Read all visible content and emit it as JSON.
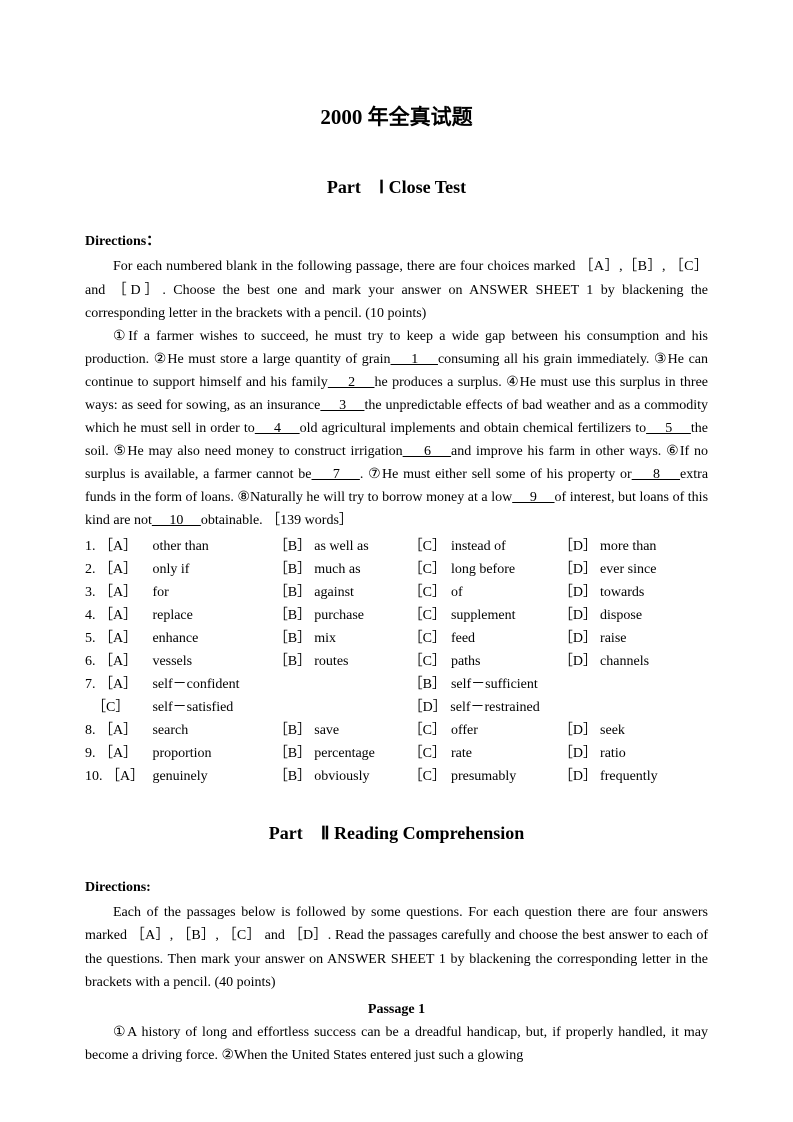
{
  "mainTitle": "2000 年全真试题",
  "part1": {
    "title": "Part　Ⅰ Close Test",
    "directionsLabel": "Directions：",
    "directionsText": "For each numbered blank in the following passage, there are four choices marked ［A］,［B］, ［C］ and ［D］. Choose the best one and mark your answer on ANSWER SHEET 1 by blackening the corresponding letter in the brackets with a pencil. (10 points)",
    "passage": {
      "s1": "①If a farmer wishes to succeed, he must try to keep a wide gap between his consumption and his production. ②He must store a large quantity of grain",
      "b1": "　 1 　",
      "s2": "consuming all his grain immediately. ③He can continue to support himself and his family",
      "b2": "　 2 　",
      "s3": "he produces a surplus. ④He must use this surplus in three ways: as seed for sowing, as an insurance",
      "b3": "　 3 　",
      "s4": "the unpredictable effects of bad weather and as a commodity which he must sell in order to",
      "b4": "　 4 　",
      "s5": "old agricultural implements and obtain chemical fertilizers to",
      "b5": "　 5 　",
      "s6": "the soil. ⑤He may also need money to construct irrigation",
      "b6": "　 6 　",
      "s7": "and improve his farm in other ways. ⑥If no surplus is available, a farmer cannot be",
      "b7": "　 7 　",
      "s8": ". ⑦He must either sell some of his property or",
      "b8": "　 8 　",
      "s9": "extra funds in the form of loans. ⑧Naturally he will try to borrow money at a low",
      "b9": "　 9 　",
      "s10": "of interest, but loans of this kind are not",
      "b10": "　 10 　",
      "s11": "obtainable. ［139 words］"
    },
    "options": [
      {
        "n": "1.",
        "a": "other than",
        "b": "as well as",
        "c": "instead of",
        "d": "more than"
      },
      {
        "n": "2.",
        "a": "only if",
        "b": "much as",
        "c": "long before",
        "d": "ever since"
      },
      {
        "n": "3.",
        "a": "for",
        "b": "against",
        "c": "of",
        "d": "towards"
      },
      {
        "n": "4.",
        "a": "replace",
        "b": "purchase",
        "c": "supplement",
        "d": "dispose"
      },
      {
        "n": "5.",
        "a": "enhance",
        "b": "mix",
        "c": "feed",
        "d": "raise"
      },
      {
        "n": "6.",
        "a": "vessels",
        "b": "routes",
        "c": "paths",
        "d": "channels"
      },
      {
        "n": "7.",
        "a": "self－confident",
        "b": "self－sufficient",
        "c": "self－satisfied",
        "d": "self－restrained"
      },
      {
        "n": "8.",
        "a": "search",
        "b": "save",
        "c": "offer",
        "d": "seek"
      },
      {
        "n": "9.",
        "a": "proportion",
        "b": "percentage",
        "c": "rate",
        "d": "ratio"
      },
      {
        "n": "10.",
        "a": "genuinely",
        "b": "obviously",
        "c": "presumably",
        "d": "frequently"
      }
    ],
    "labels": {
      "A": "［A］",
      "B": "［B］",
      "C": "［C］",
      "D": "［D］"
    }
  },
  "part2": {
    "title": "Part　Ⅱ Reading Comprehension",
    "directionsLabel": "Directions:",
    "directionsText": "Each of the passages below is followed by some questions. For each question there are four answers marked ［A］, ［B］, ［C］ and ［D］. Read the passages carefully and choose the best answer to each of the questions. Then mark your answer on ANSWER SHEET 1 by blackening the corresponding letter in the brackets with a pencil. (40 points)",
    "passageTitle": "Passage 1",
    "passageText": "①A history of long and effortless success can be a dreadful handicap, but, if properly handled, it may become a driving force. ②When the United States entered just such a glowing"
  }
}
